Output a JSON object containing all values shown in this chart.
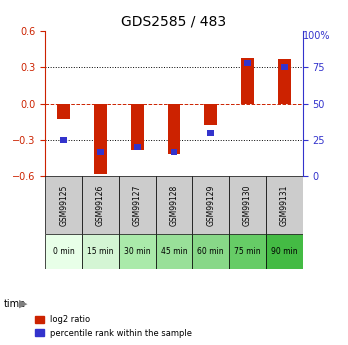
{
  "title": "GDS2585 / 483",
  "samples": [
    "GSM99125",
    "GSM99126",
    "GSM99127",
    "GSM99128",
    "GSM99129",
    "GSM99130",
    "GSM99131"
  ],
  "time_labels": [
    "0 min",
    "15 min",
    "30 min",
    "45 min",
    "60 min",
    "75 min",
    "90 min"
  ],
  "log2_ratio": [
    -0.13,
    -0.58,
    -0.38,
    -0.42,
    -0.18,
    0.38,
    0.37
  ],
  "percentile_rank": [
    25,
    17,
    20,
    17,
    30,
    78,
    75
  ],
  "ylim_left": [
    -0.6,
    0.6
  ],
  "ylim_right": [
    0,
    100
  ],
  "yticks_left": [
    -0.6,
    -0.3,
    0,
    0.3,
    0.6
  ],
  "yticks_right": [
    0,
    25,
    50,
    75,
    100
  ],
  "bar_color_red": "#cc2200",
  "bar_color_blue": "#3333cc",
  "grid_color": "#000000",
  "bg_color_plot": "#ffffff",
  "bg_color_label_gray": "#cccccc",
  "bg_color_time_light": "#ccffcc",
  "bg_color_time_dark": "#66ee66",
  "time_bg_colors": [
    "#ddffdd",
    "#ccffcc",
    "#99ee99",
    "#88ee88",
    "#77dd77",
    "#66ee66",
    "#44cc44"
  ],
  "bar_width": 0.35
}
